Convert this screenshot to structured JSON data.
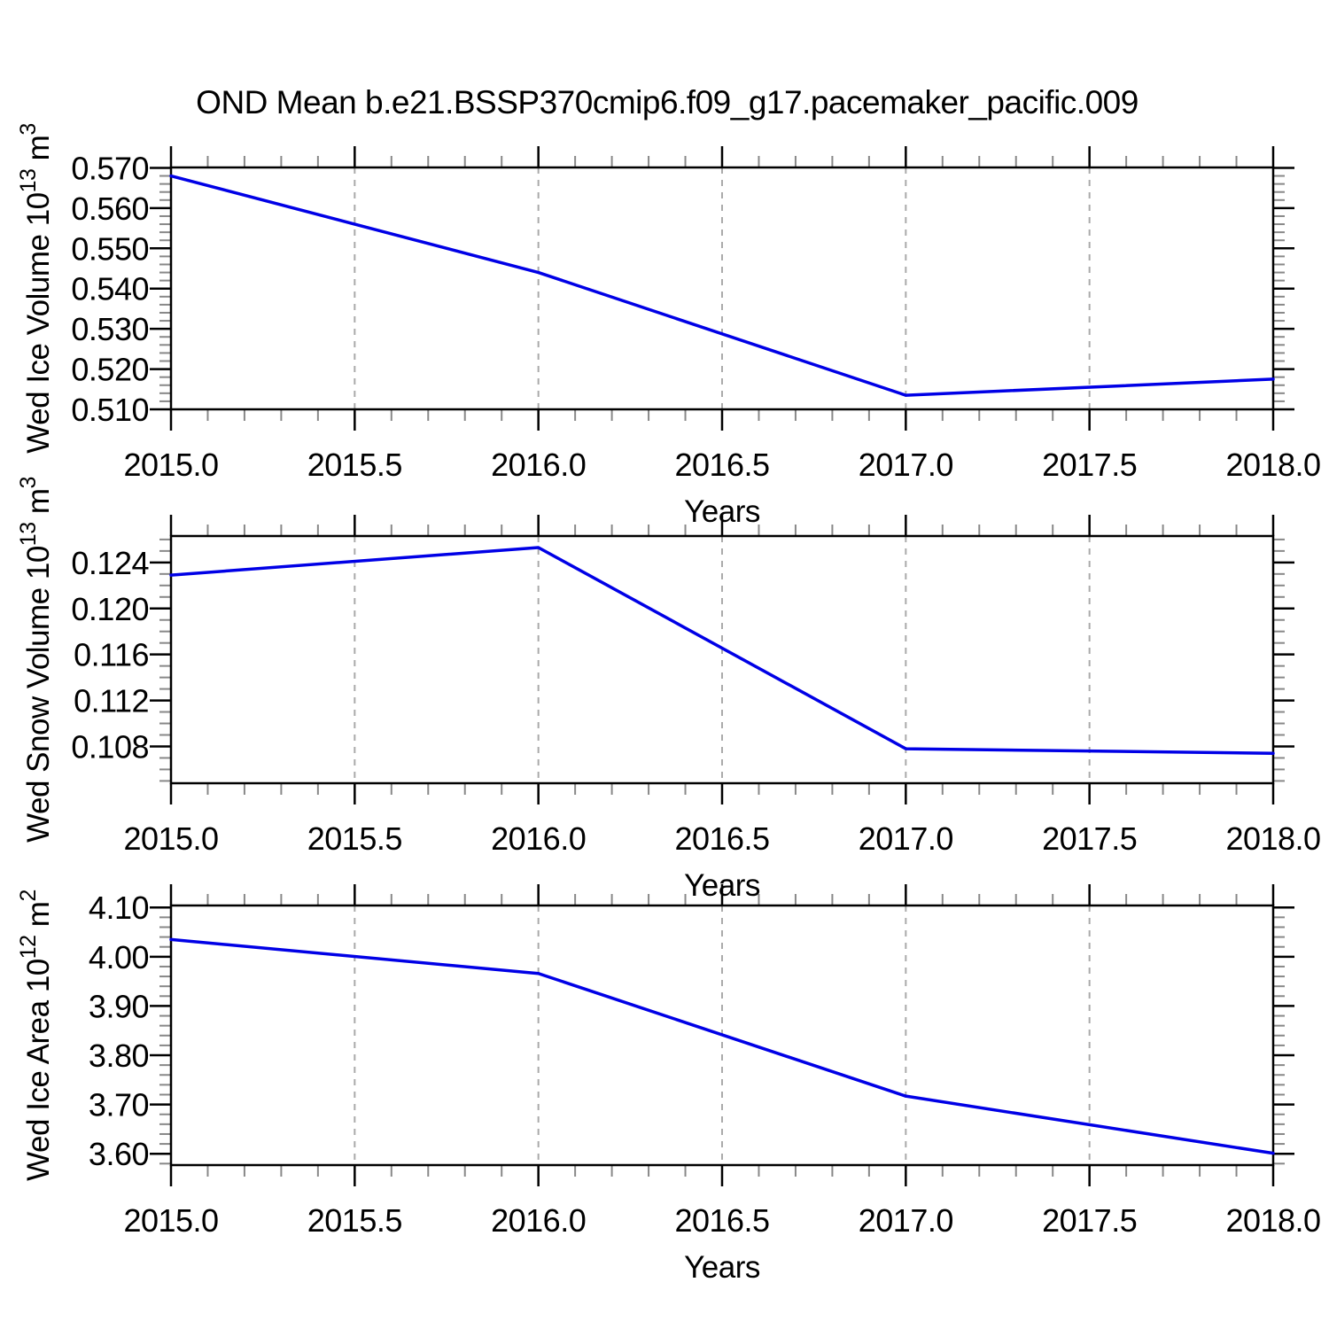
{
  "title": "OND Mean b.e21.BSSP370cmip6.f09_g17.pacemaker_pacific.009",
  "colors": {
    "line": "#0000e6",
    "axis": "#000000",
    "minor_tick": "#888888",
    "grid": "#aaaaaa",
    "background": "#ffffff"
  },
  "chart_data": [
    {
      "type": "line",
      "ylabel": "Wed Ice Volume 10¹³ m³",
      "ylabel_parts": [
        [
          "Wed Ice Volume 10",
          false
        ],
        [
          "13",
          true
        ],
        [
          " m",
          false
        ],
        [
          "3",
          true
        ]
      ],
      "xlabel": "Years",
      "x": [
        2015,
        2016,
        2017,
        2018
      ],
      "values": [
        0.568,
        0.544,
        0.5135,
        0.5175
      ],
      "xlim": [
        2015,
        2018
      ],
      "ylim": [
        0.51,
        0.5701
      ],
      "xticks": [
        2015,
        2015.5,
        2016,
        2016.5,
        2017,
        2017.5,
        2018
      ],
      "xtick_labels": [
        "2015.0",
        "2015.5",
        "2016.0",
        "2016.5",
        "2017.0",
        "2017.5",
        "2018.0"
      ],
      "x_minor_step": 0.1,
      "yticks": [
        0.51,
        0.52,
        0.53,
        0.54,
        0.55,
        0.56,
        0.57
      ],
      "ytick_labels": [
        "0.510",
        "0.520",
        "0.530",
        "0.540",
        "0.550",
        "0.560",
        "0.570"
      ],
      "y_minor_step": 0.002,
      "grid_x": [
        2015.5,
        2016,
        2016.5,
        2017,
        2017.5
      ],
      "grid_style": "vertical-dashed",
      "legend": "none"
    },
    {
      "type": "line",
      "ylabel": "Wed Snow Volume 10¹³ m³",
      "ylabel_parts": [
        [
          "Wed Snow Volume 10",
          false
        ],
        [
          "13",
          true
        ],
        [
          " m",
          false
        ],
        [
          "3",
          true
        ]
      ],
      "xlabel": "Years",
      "x": [
        2015,
        2016,
        2017,
        2018
      ],
      "values": [
        0.1229,
        0.1253,
        0.1078,
        0.1074
      ],
      "xlim": [
        2015,
        2018
      ],
      "ylim": [
        0.1048,
        0.1263
      ],
      "xticks": [
        2015,
        2015.5,
        2016,
        2016.5,
        2017,
        2017.5,
        2018
      ],
      "xtick_labels": [
        "2015.0",
        "2015.5",
        "2016.0",
        "2016.5",
        "2017.0",
        "2017.5",
        "2018.0"
      ],
      "x_minor_step": 0.1,
      "yticks": [
        0.108,
        0.112,
        0.116,
        0.12,
        0.124
      ],
      "ytick_labels": [
        "0.108",
        "0.112",
        "0.116",
        "0.120",
        "0.124"
      ],
      "y_minor_step": 0.001,
      "grid_x": [
        2015.5,
        2016,
        2016.5,
        2017,
        2017.5
      ],
      "grid_style": "vertical-dashed",
      "legend": "none"
    },
    {
      "type": "line",
      "ylabel": "Wed Ice Area 10¹² m²",
      "ylabel_parts": [
        [
          "Wed Ice Area 10",
          false
        ],
        [
          "12",
          true
        ],
        [
          " m",
          false
        ],
        [
          "2",
          true
        ]
      ],
      "xlabel": "Years",
      "x": [
        2015,
        2016,
        2017,
        2018
      ],
      "values": [
        4.035,
        3.966,
        3.717,
        3.601
      ],
      "xlim": [
        2015,
        2018
      ],
      "ylim": [
        3.577,
        4.104
      ],
      "xticks": [
        2015,
        2015.5,
        2016,
        2016.5,
        2017,
        2017.5,
        2018
      ],
      "xtick_labels": [
        "2015.0",
        "2015.5",
        "2016.0",
        "2016.5",
        "2017.0",
        "2017.5",
        "2018.0"
      ],
      "x_minor_step": 0.1,
      "yticks": [
        3.6,
        3.7,
        3.8,
        3.9,
        4.0,
        4.1
      ],
      "ytick_labels": [
        "3.60",
        "3.70",
        "3.80",
        "3.90",
        "4.00",
        "4.10"
      ],
      "y_minor_step": 0.02,
      "grid_x": [
        2015.5,
        2016,
        2016.5,
        2017,
        2017.5
      ],
      "grid_style": "vertical-dashed",
      "legend": "none"
    }
  ]
}
